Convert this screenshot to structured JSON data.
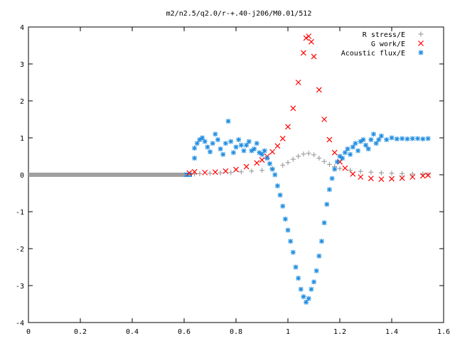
{
  "chart_data": {
    "type": "scatter",
    "title": "m2/n2.5/q2.0/r-+.40-j206/M0.01/512",
    "xlabel": "",
    "ylabel": "",
    "xlim": [
      0,
      1.6
    ],
    "ylim": [
      -4,
      4
    ],
    "x_ticks": [
      0,
      0.2,
      0.4,
      0.6,
      0.8,
      1,
      1.2,
      1.4,
      1.6
    ],
    "x_tick_labels": [
      "0",
      "0.2",
      "0.4",
      "0.6",
      "0.8",
      "1",
      "1.2",
      "1.4",
      "1.6"
    ],
    "y_ticks": [
      -4,
      -3,
      -2,
      -1,
      0,
      1,
      2,
      3,
      4
    ],
    "y_tick_labels": [
      "-4",
      "-3",
      "-2",
      "-1",
      "0",
      "1",
      "2",
      "3",
      "4"
    ],
    "grid": false,
    "legend_position": "top-right",
    "series": [
      {
        "name": "R stress/E",
        "marker": "plus",
        "color": "#a0a0a0",
        "points": [
          [
            0.6,
            0.0
          ],
          [
            0.62,
            0.0
          ],
          [
            0.64,
            0.02
          ],
          [
            0.66,
            0.03
          ],
          [
            0.7,
            0.04
          ],
          [
            0.74,
            0.05
          ],
          [
            0.78,
            0.06
          ],
          [
            0.82,
            0.08
          ],
          [
            0.86,
            0.1
          ],
          [
            0.9,
            0.12
          ],
          [
            0.94,
            0.17
          ],
          [
            0.98,
            0.26
          ],
          [
            1.0,
            0.33
          ],
          [
            1.02,
            0.42
          ],
          [
            1.04,
            0.5
          ],
          [
            1.06,
            0.56
          ],
          [
            1.08,
            0.58
          ],
          [
            1.1,
            0.54
          ],
          [
            1.12,
            0.45
          ],
          [
            1.14,
            0.36
          ],
          [
            1.16,
            0.28
          ],
          [
            1.18,
            0.22
          ],
          [
            1.2,
            0.17
          ],
          [
            1.24,
            0.12
          ],
          [
            1.28,
            0.09
          ],
          [
            1.32,
            0.07
          ],
          [
            1.36,
            0.05
          ],
          [
            1.4,
            0.04
          ],
          [
            1.44,
            0.03
          ],
          [
            1.48,
            0.02
          ],
          [
            1.52,
            0.02
          ],
          [
            1.54,
            0.01
          ]
        ]
      },
      {
        "name": "G work/E",
        "marker": "cross",
        "color": "#ff0000",
        "points": [
          [
            0.62,
            0.05
          ],
          [
            0.64,
            0.08
          ],
          [
            0.68,
            0.06
          ],
          [
            0.72,
            0.07
          ],
          [
            0.76,
            0.1
          ],
          [
            0.8,
            0.14
          ],
          [
            0.84,
            0.22
          ],
          [
            0.88,
            0.32
          ],
          [
            0.9,
            0.4
          ],
          [
            0.92,
            0.5
          ],
          [
            0.94,
            0.62
          ],
          [
            0.96,
            0.78
          ],
          [
            0.98,
            0.98
          ],
          [
            1.0,
            1.3
          ],
          [
            1.02,
            1.8
          ],
          [
            1.04,
            2.5
          ],
          [
            1.06,
            3.3
          ],
          [
            1.07,
            3.7
          ],
          [
            1.08,
            3.75
          ],
          [
            1.09,
            3.6
          ],
          [
            1.1,
            3.2
          ],
          [
            1.12,
            2.3
          ],
          [
            1.14,
            1.5
          ],
          [
            1.16,
            0.95
          ],
          [
            1.18,
            0.6
          ],
          [
            1.2,
            0.35
          ],
          [
            1.22,
            0.18
          ],
          [
            1.25,
            0.02
          ],
          [
            1.28,
            -0.06
          ],
          [
            1.32,
            -0.1
          ],
          [
            1.36,
            -0.12
          ],
          [
            1.4,
            -0.11
          ],
          [
            1.44,
            -0.09
          ],
          [
            1.48,
            -0.06
          ],
          [
            1.52,
            -0.03
          ],
          [
            1.54,
            -0.01
          ]
        ]
      },
      {
        "name": "Acoustic flux/E",
        "marker": "star",
        "color": "#1f8de0",
        "points": [
          [
            0.64,
            0.45
          ],
          [
            0.64,
            0.72
          ],
          [
            0.65,
            0.85
          ],
          [
            0.66,
            0.95
          ],
          [
            0.67,
            1.0
          ],
          [
            0.68,
            0.9
          ],
          [
            0.69,
            0.75
          ],
          [
            0.7,
            0.62
          ],
          [
            0.71,
            0.85
          ],
          [
            0.72,
            1.1
          ],
          [
            0.73,
            0.95
          ],
          [
            0.74,
            0.7
          ],
          [
            0.75,
            0.55
          ],
          [
            0.76,
            0.85
          ],
          [
            0.77,
            1.45
          ],
          [
            0.78,
            0.9
          ],
          [
            0.79,
            0.6
          ],
          [
            0.8,
            0.75
          ],
          [
            0.81,
            0.95
          ],
          [
            0.82,
            0.8
          ],
          [
            0.83,
            0.65
          ],
          [
            0.84,
            0.8
          ],
          [
            0.85,
            0.9
          ],
          [
            0.86,
            0.65
          ],
          [
            0.87,
            0.7
          ],
          [
            0.88,
            0.85
          ],
          [
            0.89,
            0.6
          ],
          [
            0.9,
            0.55
          ],
          [
            0.91,
            0.65
          ],
          [
            0.92,
            0.45
          ],
          [
            0.93,
            0.3
          ],
          [
            0.94,
            0.15
          ],
          [
            0.95,
            0.0
          ],
          [
            0.96,
            -0.3
          ],
          [
            0.97,
            -0.55
          ],
          [
            0.98,
            -0.85
          ],
          [
            0.99,
            -1.2
          ],
          [
            1.0,
            -1.5
          ],
          [
            1.01,
            -1.8
          ],
          [
            1.02,
            -2.1
          ],
          [
            1.03,
            -2.5
          ],
          [
            1.04,
            -2.8
          ],
          [
            1.05,
            -3.1
          ],
          [
            1.06,
            -3.3
          ],
          [
            1.07,
            -3.45
          ],
          [
            1.08,
            -3.35
          ],
          [
            1.09,
            -3.1
          ],
          [
            1.1,
            -2.9
          ],
          [
            1.11,
            -2.6
          ],
          [
            1.12,
            -2.2
          ],
          [
            1.13,
            -1.8
          ],
          [
            1.14,
            -1.3
          ],
          [
            1.15,
            -0.8
          ],
          [
            1.16,
            -0.4
          ],
          [
            1.17,
            -0.1
          ],
          [
            1.18,
            0.15
          ],
          [
            1.19,
            0.35
          ],
          [
            1.2,
            0.5
          ],
          [
            1.21,
            0.45
          ],
          [
            1.22,
            0.6
          ],
          [
            1.23,
            0.7
          ],
          [
            1.24,
            0.55
          ],
          [
            1.25,
            0.75
          ],
          [
            1.26,
            0.85
          ],
          [
            1.27,
            0.65
          ],
          [
            1.28,
            0.9
          ],
          [
            1.29,
            0.95
          ],
          [
            1.3,
            0.8
          ],
          [
            1.31,
            0.7
          ],
          [
            1.32,
            0.95
          ],
          [
            1.33,
            1.1
          ],
          [
            1.34,
            0.85
          ],
          [
            1.35,
            0.95
          ],
          [
            1.36,
            1.05
          ],
          [
            1.38,
            0.95
          ],
          [
            1.4,
            1.0
          ],
          [
            1.42,
            0.97
          ],
          [
            1.44,
            0.98
          ],
          [
            1.46,
            0.97
          ],
          [
            1.48,
            0.98
          ],
          [
            1.5,
            0.98
          ],
          [
            1.52,
            0.97
          ],
          [
            1.54,
            0.98
          ]
        ]
      }
    ],
    "flat_segments": [
      {
        "series_index": 2,
        "x_start": 0.0,
        "x_end": 0.63,
        "y": 0.0
      },
      {
        "series_index": 0,
        "x_start": 0.0,
        "x_end": 0.6,
        "y": 0.0
      }
    ]
  }
}
